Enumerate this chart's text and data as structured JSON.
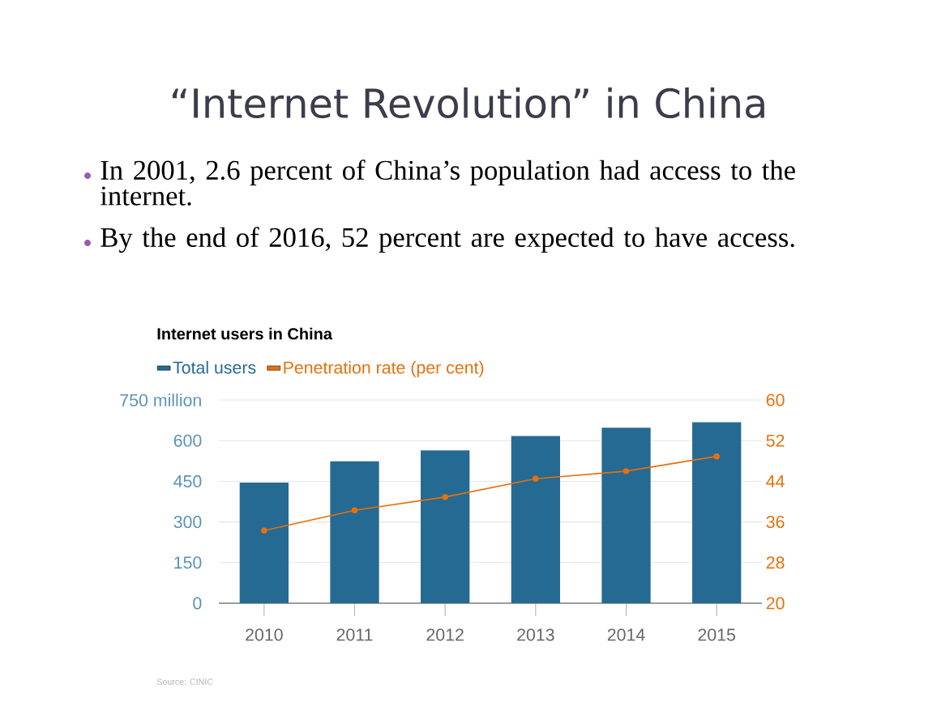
{
  "chart_data": {
    "type": "bar",
    "title": "“Internet Revolution” in China",
    "subtitle": "Internet users in China",
    "annotations": [
      "In 2001, 2.6 percent of China’s population had access to the internet.",
      "By the end of 2016, 52 percent are expected to have access.",
      "Source: CINIC"
    ],
    "categories": [
      "2010",
      "2011",
      "2012",
      "2013",
      "2014",
      "2015"
    ],
    "series": [
      {
        "name": "Total users",
        "color": "#256a93",
        "values": [
          445,
          524,
          564,
          617,
          648,
          668
        ]
      },
      {
        "name": "Penetration rate (per cent)",
        "type": "line",
        "axis": "y2",
        "color": "#e8700a",
        "marker": "circle",
        "values": [
          34.3,
          38.3,
          40.9,
          44.5,
          46.0,
          48.9
        ]
      }
    ],
    "ylim": [
      0,
      750
    ],
    "yticks": [
      0,
      150,
      300,
      450,
      {
        "value": 750,
        "label": "750 million"
      },
      600
    ],
    "y2lim": [
      20,
      60
    ],
    "y2ticks": [
      20,
      28,
      36,
      44,
      52,
      60
    ],
    "grid": "y",
    "legend": "top left"
  }
}
